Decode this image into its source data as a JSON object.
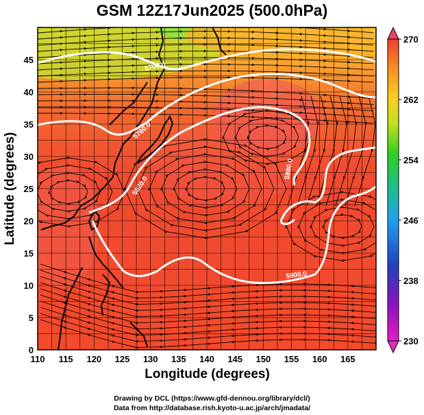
{
  "title": "GSM 12Z17Jun2025 (500.0hPa)",
  "xlabel": "Longitude (degrees)",
  "ylabel": "Latitude  (degrees)",
  "x_ticks": [
    "110",
    "115",
    "120",
    "125",
    "130",
    "135",
    "140",
    "145",
    "150",
    "155",
    "160",
    "165"
  ],
  "y_ticks": [
    "0",
    "5",
    "10",
    "15",
    "20",
    "25",
    "30",
    "35",
    "40",
    "45"
  ],
  "x_range": [
    110,
    170
  ],
  "y_range": [
    0,
    50
  ],
  "colorbar": {
    "labels": [
      "230",
      "238",
      "246",
      "254",
      "262",
      "270"
    ],
    "min": 230,
    "max": 270,
    "unit_hint": "temperature (K)"
  },
  "contours": [
    {
      "label": "5700.0",
      "value": 5700
    },
    {
      "label": "5880.0",
      "value": 5880
    },
    {
      "label": "5820.0",
      "value": 5820
    },
    {
      "label": "5900.0",
      "value": 5900
    },
    {
      "label": "5760.0",
      "value": 5760
    }
  ],
  "credits": {
    "line1": "Drawing by DCL (https://www.gfd-dennou.org/library/dcl/)",
    "line2": "Data from http://database.rish.kyoto-u.ac.jp/arch/jmadata/"
  },
  "colors": {
    "warm_red": "#f0503a",
    "orange": "#f8a030",
    "yellow_green": "#b8e030",
    "contour": "#ffffff"
  }
}
